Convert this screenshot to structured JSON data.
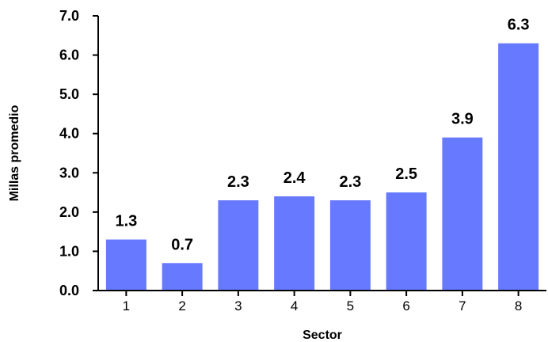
{
  "chart_data": {
    "type": "bar",
    "xlabel": "Sector",
    "ylabel": "Millas promedio",
    "categories": [
      "1",
      "2",
      "3",
      "4",
      "5",
      "6",
      "7",
      "8"
    ],
    "values": [
      1.3,
      0.7,
      2.3,
      2.4,
      2.3,
      2.5,
      3.9,
      6.3
    ],
    "value_labels": [
      "1.3",
      "0.7",
      "2.3",
      "2.4",
      "2.3",
      "2.5",
      "3.9",
      "6.3"
    ],
    "ylim": [
      0,
      7
    ],
    "yticks": [
      "0.0",
      "1.0",
      "2.0",
      "3.0",
      "4.0",
      "5.0",
      "6.0",
      "7.0"
    ],
    "grid": false,
    "bar_color": "#6679ff"
  }
}
